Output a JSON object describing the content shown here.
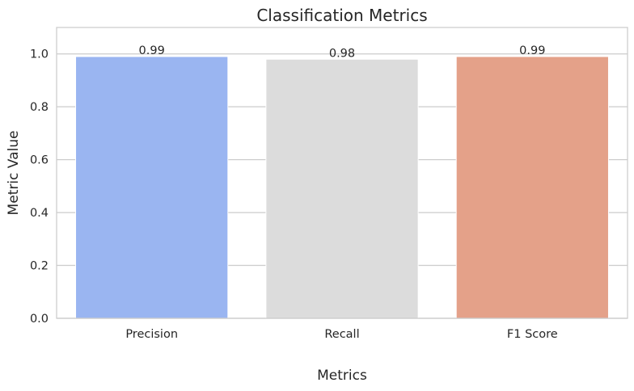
{
  "chart_data": {
    "type": "bar",
    "title": "Classification Metrics",
    "xlabel": "Metrics",
    "ylabel": "Metric Value",
    "categories": [
      "Precision",
      "Recall",
      "F1 Score"
    ],
    "values": [
      0.99,
      0.98,
      0.99
    ],
    "value_labels": [
      "0.99",
      "0.98",
      "0.99"
    ],
    "colors": [
      "#9ab5f1",
      "#dcdcdc",
      "#e4a189"
    ],
    "ylim": [
      0,
      1.1
    ],
    "yticks": [
      0.0,
      0.2,
      0.4,
      0.6,
      0.8,
      1.0
    ],
    "ytick_labels": [
      "0.0",
      "0.2",
      "0.4",
      "0.6",
      "0.8",
      "1.0"
    ],
    "grid": "horizontal",
    "grid_color": "#cccccc",
    "spine_color": "#cccccc",
    "legend": "none"
  }
}
